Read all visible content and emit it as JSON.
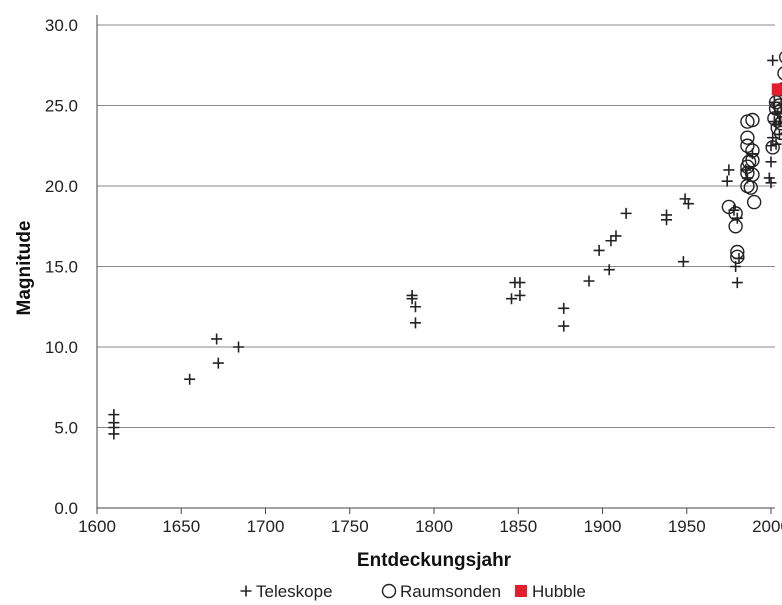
{
  "chart_data": {
    "type": "scatter",
    "title": "",
    "xlabel": "Entdeckungsjahr",
    "ylabel": "Magnitude",
    "xlim": [
      1600,
      2012
    ],
    "ylim": [
      0,
      30
    ],
    "x_ticks": [
      "1600",
      "1650",
      "1700",
      "1750",
      "1800",
      "1850",
      "1900",
      "1950",
      "2000"
    ],
    "y_ticks": [
      "0.0",
      "5.0",
      "10.0",
      "15.0",
      "20.0",
      "25.0",
      "30.0"
    ],
    "grid": "horizontal",
    "legend_position": "bottom",
    "colors": {
      "telescope": "#222222",
      "probe": "#222222",
      "hubble": "#e31e2d",
      "grid": "#8a8a8a"
    },
    "series": [
      {
        "name": "Teleskope",
        "marker": "plus",
        "points": [
          [
            1610,
            5.8
          ],
          [
            1610,
            5.3
          ],
          [
            1610,
            5.0
          ],
          [
            1610,
            4.6
          ],
          [
            1655,
            8.0
          ],
          [
            1671,
            10.5
          ],
          [
            1672,
            9.0
          ],
          [
            1684,
            10.0
          ],
          [
            1787,
            13.2
          ],
          [
            1787,
            13.0
          ],
          [
            1789,
            12.5
          ],
          [
            1789,
            11.5
          ],
          [
            1846,
            13.0
          ],
          [
            1848,
            14.0
          ],
          [
            1851,
            14.0
          ],
          [
            1851,
            13.2
          ],
          [
            1877,
            12.4
          ],
          [
            1877,
            11.3
          ],
          [
            1892,
            14.1
          ],
          [
            1898,
            16.0
          ],
          [
            1904,
            14.8
          ],
          [
            1905,
            16.6
          ],
          [
            1908,
            16.9
          ],
          [
            1914,
            18.3
          ],
          [
            1938,
            18.2
          ],
          [
            1938,
            17.9
          ],
          [
            1948,
            15.3
          ],
          [
            1949,
            19.2
          ],
          [
            1951,
            18.9
          ],
          [
            1974,
            20.3
          ],
          [
            1975,
            21.0
          ],
          [
            1978,
            18.5
          ],
          [
            1979,
            15.0
          ],
          [
            1980,
            14.0
          ],
          [
            1980,
            18.0
          ],
          [
            1981,
            15.5
          ],
          [
            1985,
            21.0
          ],
          [
            1986,
            20.5
          ],
          [
            1989,
            22.0
          ],
          [
            1999,
            20.5
          ],
          [
            2000,
            20.2
          ],
          [
            2000,
            21.5
          ],
          [
            2000,
            22.5
          ],
          [
            2001,
            23.0
          ],
          [
            2001,
            27.8
          ],
          [
            2002,
            24.0
          ],
          [
            2002,
            25.2
          ],
          [
            2003,
            22.6
          ],
          [
            2003,
            23.8
          ],
          [
            2004,
            24.5
          ],
          [
            2005,
            23.2
          ],
          [
            2005,
            24.0
          ],
          [
            2006,
            25.0
          ],
          [
            2007,
            24.6
          ],
          [
            2008,
            23.9
          ],
          [
            2010,
            23.4
          ]
        ]
      },
      {
        "name": "Raumsonden",
        "marker": "circle",
        "points": [
          [
            1975,
            18.7
          ],
          [
            1979,
            17.5
          ],
          [
            1979,
            18.3
          ],
          [
            1980,
            15.9
          ],
          [
            1980,
            15.6
          ],
          [
            1986,
            24.0
          ],
          [
            1986,
            23.0
          ],
          [
            1986,
            22.5
          ],
          [
            1986,
            21.2
          ],
          [
            1986,
            20.8
          ],
          [
            1986,
            20.0
          ],
          [
            1987,
            21.5
          ],
          [
            1988,
            19.9
          ],
          [
            1989,
            24.1
          ],
          [
            1989,
            22.2
          ],
          [
            1989,
            21.6
          ],
          [
            1989,
            20.7
          ],
          [
            1990,
            19.0
          ],
          [
            2001,
            22.4
          ],
          [
            2002,
            24.2
          ],
          [
            2003,
            25.2
          ],
          [
            2003,
            24.8
          ],
          [
            2004,
            23.6
          ],
          [
            2005,
            25.0
          ],
          [
            2006,
            23.9
          ],
          [
            2006,
            24.7
          ],
          [
            2006,
            23.3
          ],
          [
            2007,
            26.0
          ],
          [
            2008,
            27.0
          ],
          [
            2009,
            28.0
          ]
        ]
      },
      {
        "name": "Hubble",
        "marker": "square",
        "points": [
          [
            2004,
            26.0
          ]
        ]
      }
    ]
  }
}
